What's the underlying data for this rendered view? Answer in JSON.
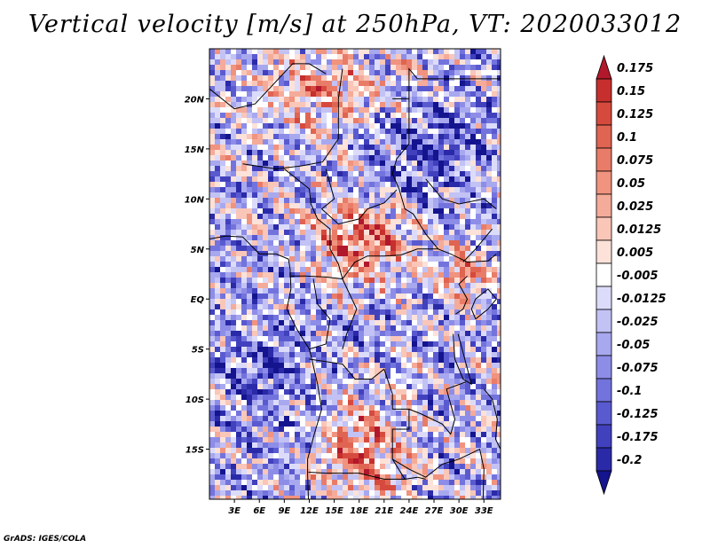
{
  "title": "Vertical velocity [m/s] at 250hPa, VT: 2020033012",
  "credit": "GrADS: IGES/COLA",
  "chart_data": {
    "type": "heatmap",
    "variable": "Vertical velocity",
    "units": "m/s",
    "level": "250hPa",
    "valid_time": "2020033012",
    "lon_range": [
      0,
      35
    ],
    "lat_range": [
      -20,
      25
    ],
    "x_ticks": [
      "3E",
      "6E",
      "9E",
      "12E",
      "15E",
      "18E",
      "21E",
      "24E",
      "27E",
      "30E",
      "33E"
    ],
    "x_tick_values": [
      3,
      6,
      9,
      12,
      15,
      18,
      21,
      24,
      27,
      30,
      33
    ],
    "y_ticks": [
      "20N",
      "15N",
      "10N",
      "5N",
      "EQ",
      "5S",
      "10S",
      "15S"
    ],
    "y_tick_values": [
      20,
      15,
      10,
      5,
      0,
      -5,
      -10,
      -15
    ],
    "colorbar": {
      "labels": [
        "0.175",
        "0.15",
        "0.125",
        "0.1",
        "0.075",
        "0.05",
        "0.025",
        "0.0125",
        "0.005",
        "-0.005",
        "-0.0125",
        "-0.025",
        "-0.05",
        "-0.075",
        "-0.1",
        "-0.125",
        "-0.175",
        "-0.2"
      ],
      "colors": [
        "#b2182b",
        "#c62f2d",
        "#d64a3e",
        "#e06452",
        "#e97c68",
        "#f0937f",
        "#f5ab99",
        "#f9c6b8",
        "#fce2d9",
        "#ffffff",
        "#dcdcfa",
        "#c2c2f5",
        "#a8a8ef",
        "#8d8de8",
        "#7373dd",
        "#5a5ad0",
        "#4141be",
        "#2a2aa8",
        "#14148f"
      ]
    },
    "colors": {
      "land_border": "#000000",
      "frame": "#000000"
    }
  }
}
